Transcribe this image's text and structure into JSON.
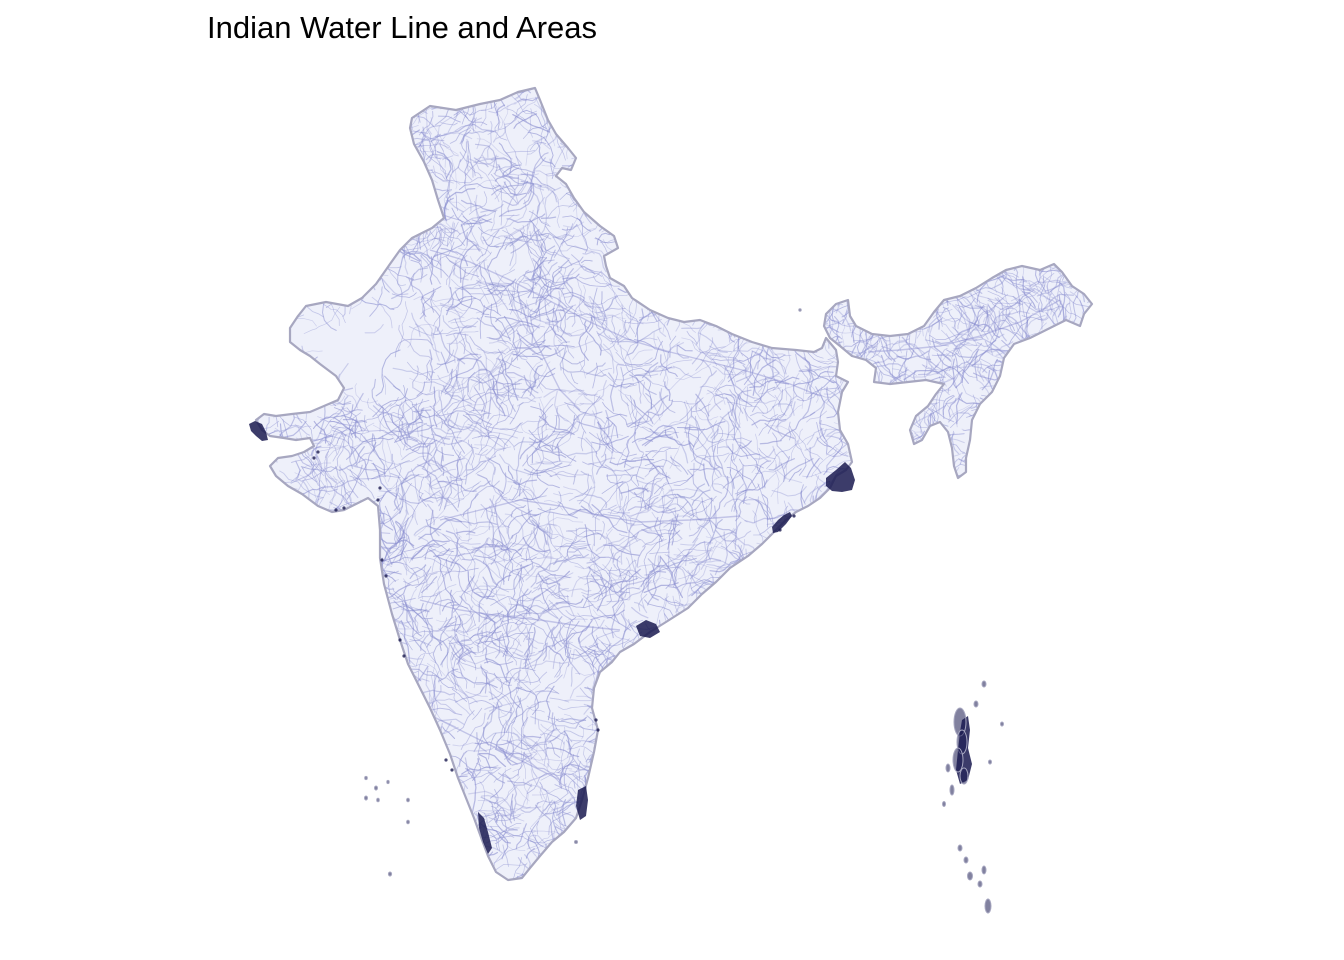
{
  "map": {
    "title": "Indian Water Line and Areas"
  },
  "colors": {
    "background": "#ffffff",
    "outline": "#a7a7c0",
    "water_lines": "#8b8fd0",
    "water_areas": "#1a1a50"
  }
}
